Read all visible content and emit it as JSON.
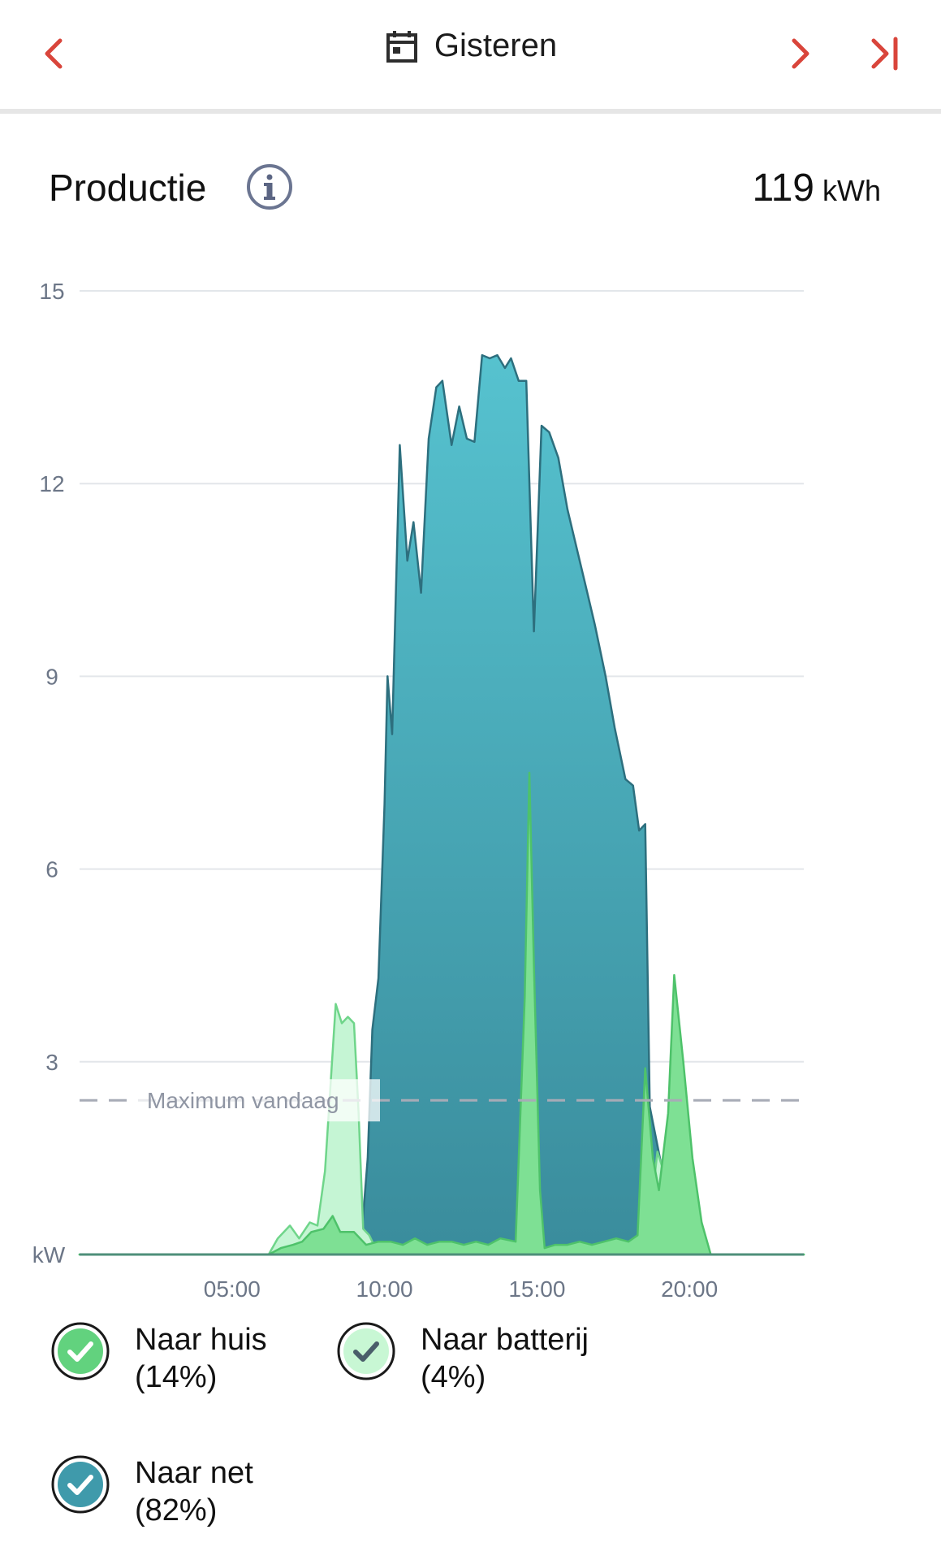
{
  "header": {
    "date_label": "Gisteren",
    "icons": [
      "chevron-left-icon",
      "calendar-icon",
      "chevron-right-icon",
      "skip-to-end-icon"
    ],
    "accent_color": "#d9453b"
  },
  "summary": {
    "title": "Productie",
    "total_value": "119",
    "total_unit": "kWh"
  },
  "chart_data": {
    "type": "area",
    "y_unit": "kW",
    "ylim": [
      0,
      15
    ],
    "y_ticks": [
      "15",
      "12",
      "9",
      "6",
      "3"
    ],
    "xlim": [
      0,
      23.75
    ],
    "x_ticks": [
      {
        "label": "05:00",
        "x": 5
      },
      {
        "label": "10:00",
        "x": 10
      },
      {
        "label": "15:00",
        "x": 15
      },
      {
        "label": "20:00",
        "x": 20
      }
    ],
    "grid": true,
    "reference_line": {
      "label": "Maximum vandaag",
      "y": 2.4,
      "style": "dashed"
    },
    "series": [
      {
        "name": "Naar net",
        "color": "#3f9aab",
        "points": [
          [
            0,
            0
          ],
          [
            9.2,
            0
          ],
          [
            9.45,
            1.5
          ],
          [
            9.6,
            3.5
          ],
          [
            9.8,
            4.3
          ],
          [
            10.0,
            7.0
          ],
          [
            10.1,
            9.0
          ],
          [
            10.25,
            8.1
          ],
          [
            10.5,
            12.6
          ],
          [
            10.75,
            10.8
          ],
          [
            10.95,
            11.4
          ],
          [
            11.2,
            10.3
          ],
          [
            11.45,
            12.7
          ],
          [
            11.7,
            13.5
          ],
          [
            11.9,
            13.6
          ],
          [
            12.2,
            12.6
          ],
          [
            12.45,
            13.2
          ],
          [
            12.7,
            12.7
          ],
          [
            12.95,
            12.65
          ],
          [
            13.2,
            14.0
          ],
          [
            13.45,
            13.95
          ],
          [
            13.7,
            14.0
          ],
          [
            13.95,
            13.8
          ],
          [
            14.15,
            13.95
          ],
          [
            14.4,
            13.6
          ],
          [
            14.65,
            13.6
          ],
          [
            14.9,
            9.7
          ],
          [
            15.15,
            12.9
          ],
          [
            15.4,
            12.8
          ],
          [
            15.7,
            12.4
          ],
          [
            16.0,
            11.6
          ],
          [
            16.3,
            11.0
          ],
          [
            16.6,
            10.4
          ],
          [
            16.9,
            9.8
          ],
          [
            17.25,
            9.0
          ],
          [
            17.55,
            8.2
          ],
          [
            17.9,
            7.4
          ],
          [
            18.15,
            7.3
          ],
          [
            18.35,
            6.6
          ],
          [
            18.55,
            6.7
          ],
          [
            18.7,
            2.3
          ],
          [
            18.95,
            1.7
          ],
          [
            19.2,
            1.1
          ],
          [
            19.4,
            0.5
          ],
          [
            19.55,
            0
          ],
          [
            23.75,
            0
          ]
        ]
      },
      {
        "name": "Naar batterij",
        "color": "#c5f5d4",
        "points": [
          [
            0,
            0
          ],
          [
            6.2,
            0
          ],
          [
            6.5,
            0.25
          ],
          [
            6.9,
            0.45
          ],
          [
            7.2,
            0.25
          ],
          [
            7.55,
            0.5
          ],
          [
            7.8,
            0.45
          ],
          [
            8.05,
            1.3
          ],
          [
            8.4,
            3.9
          ],
          [
            8.6,
            3.6
          ],
          [
            8.8,
            3.7
          ],
          [
            9.0,
            3.6
          ],
          [
            9.15,
            2.2
          ],
          [
            9.3,
            0.4
          ],
          [
            9.5,
            0.3
          ],
          [
            9.7,
            0.1
          ],
          [
            18.6,
            0.1
          ],
          [
            18.95,
            1.6
          ],
          [
            19.15,
            1.3
          ],
          [
            19.4,
            0.7
          ],
          [
            19.6,
            0
          ],
          [
            23.75,
            0
          ]
        ]
      },
      {
        "name": "Naar huis",
        "color": "#7ee094",
        "points": [
          [
            0,
            0
          ],
          [
            6.2,
            0
          ],
          [
            6.6,
            0.1
          ],
          [
            7.0,
            0.15
          ],
          [
            7.3,
            0.2
          ],
          [
            7.6,
            0.35
          ],
          [
            8.0,
            0.4
          ],
          [
            8.3,
            0.6
          ],
          [
            8.55,
            0.35
          ],
          [
            9.0,
            0.35
          ],
          [
            9.4,
            0.15
          ],
          [
            9.8,
            0.2
          ],
          [
            10.2,
            0.2
          ],
          [
            10.6,
            0.15
          ],
          [
            11.0,
            0.25
          ],
          [
            11.4,
            0.15
          ],
          [
            11.8,
            0.2
          ],
          [
            12.2,
            0.2
          ],
          [
            12.6,
            0.15
          ],
          [
            13.0,
            0.2
          ],
          [
            13.4,
            0.15
          ],
          [
            13.8,
            0.25
          ],
          [
            14.3,
            0.2
          ],
          [
            14.6,
            4.0
          ],
          [
            14.75,
            7.5
          ],
          [
            14.9,
            4.5
          ],
          [
            15.1,
            1.0
          ],
          [
            15.25,
            0.1
          ],
          [
            15.6,
            0.15
          ],
          [
            16.0,
            0.15
          ],
          [
            16.4,
            0.2
          ],
          [
            16.8,
            0.15
          ],
          [
            17.2,
            0.2
          ],
          [
            17.6,
            0.25
          ],
          [
            18.0,
            0.2
          ],
          [
            18.3,
            0.3
          ],
          [
            18.55,
            2.9
          ],
          [
            18.8,
            1.5
          ],
          [
            19.0,
            1.0
          ],
          [
            19.3,
            2.2
          ],
          [
            19.5,
            4.35
          ],
          [
            19.8,
            3.0
          ],
          [
            20.1,
            1.5
          ],
          [
            20.4,
            0.5
          ],
          [
            20.7,
            0
          ],
          [
            23.75,
            0
          ]
        ]
      }
    ]
  },
  "legend": [
    {
      "label": "Naar huis",
      "percent": "(14%)",
      "color": "#62d27e",
      "check_color": "#ffffff"
    },
    {
      "label": "Naar batterij",
      "percent": "(4%)",
      "color": "#c8f7d4",
      "check_color": "#4a5e6a"
    },
    {
      "label": "Naar net",
      "percent": "(82%)",
      "color": "#3f9aab",
      "check_color": "#ffffff"
    }
  ]
}
